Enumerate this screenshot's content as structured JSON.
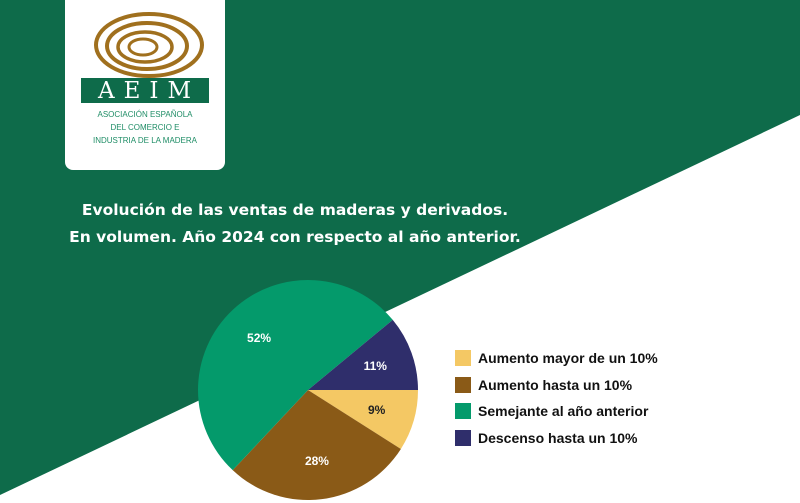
{
  "logo": {
    "acronym": "AEIM",
    "subtitle_lines": [
      "ASOCIACIÓN ESPAÑOLA",
      "DEL COMERCIO E",
      "INDUSTRIA DE LA MADERA"
    ]
  },
  "colors": {
    "green_bg": "#0e6b4a",
    "logo_brown": "#a0701e"
  },
  "chart_data": {
    "type": "pie",
    "title": [
      "Evolución de las ventas de maderas y derivados.",
      "En volumen. Año 2024 con respecto al año anterior."
    ],
    "legend_position": "right",
    "categories": [
      "Aumento mayor de un 10%",
      "Aumento hasta un 10%",
      "Semejante al año anterior",
      "Descenso hasta un 10%"
    ],
    "values": [
      9,
      28,
      52,
      11
    ],
    "labels": [
      "9%",
      "28%",
      "52%",
      "11%"
    ],
    "colors": [
      "#f4c864",
      "#8a5a17",
      "#049a6b",
      "#2f2e6b"
    ],
    "label_colors": [
      "#222222",
      "#ffffff",
      "#ffffff",
      "#ffffff"
    ]
  }
}
